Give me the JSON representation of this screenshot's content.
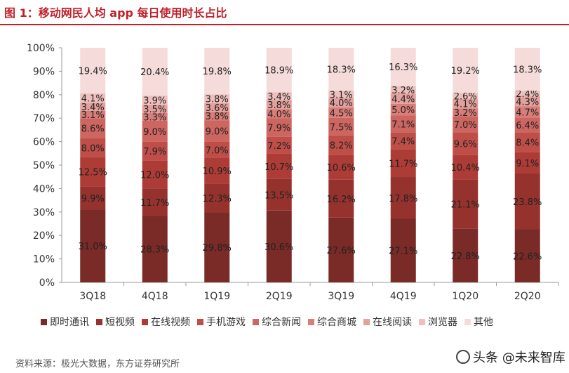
{
  "title": "图 1：移动网民人均 app 每日使用时长占比",
  "source": "资料来源：极光大数据，东方证券研究所",
  "watermark": "头条 @未来智库",
  "colors": {
    "title": "#c0202a",
    "series": [
      "#7a2a27",
      "#95322e",
      "#ad3b36",
      "#bf4e48",
      "#cd6560",
      "#d87d78",
      "#e3a09c",
      "#eec0bd",
      "#f5dcda"
    ]
  },
  "chart_data": {
    "type": "bar",
    "stacked": true,
    "categories": [
      "3Q18",
      "4Q18",
      "1Q19",
      "2Q19",
      "3Q19",
      "4Q19",
      "1Q20",
      "2Q20"
    ],
    "y_ticks": [
      "0%",
      "10%",
      "20%",
      "30%",
      "40%",
      "50%",
      "60%",
      "70%",
      "80%",
      "90%",
      "100%"
    ],
    "ylim": [
      0,
      100
    ],
    "legend_position": "bottom",
    "series": [
      {
        "name": "即时通讯",
        "values": [
          31.0,
          28.3,
          29.8,
          30.6,
          27.6,
          27.1,
          22.8,
          22.6
        ]
      },
      {
        "name": "短视频",
        "values": [
          9.9,
          11.7,
          12.3,
          13.5,
          16.2,
          17.8,
          21.1,
          23.8
        ]
      },
      {
        "name": "在线视频",
        "values": [
          12.5,
          12.0,
          10.9,
          10.7,
          10.6,
          11.7,
          10.4,
          9.1
        ]
      },
      {
        "name": "手机游戏",
        "values": [
          8.0,
          7.9,
          7.0,
          7.2,
          8.2,
          7.4,
          9.6,
          8.4
        ]
      },
      {
        "name": "综合新闻",
        "values": [
          8.6,
          9.0,
          9.0,
          7.9,
          7.5,
          7.1,
          7.0,
          6.4
        ]
      },
      {
        "name": "综合商城",
        "values": [
          3.1,
          3.3,
          3.8,
          4.0,
          4.5,
          5.0,
          3.2,
          4.7
        ]
      },
      {
        "name": "在线阅读",
        "values": [
          3.4,
          3.5,
          3.6,
          3.8,
          4.0,
          4.4,
          4.1,
          4.3
        ]
      },
      {
        "name": "浏览器",
        "values": [
          4.1,
          3.9,
          3.8,
          3.4,
          3.1,
          3.2,
          2.6,
          2.4
        ]
      },
      {
        "name": "其他",
        "values": [
          19.4,
          20.4,
          19.8,
          18.9,
          18.3,
          16.3,
          19.2,
          18.3
        ]
      }
    ],
    "labels": [
      [
        "31.0%",
        "9.9%",
        "12.5%",
        "8.0%",
        "8.6%",
        "3.1%",
        "3.4%",
        "4.1%",
        "19.4%"
      ],
      [
        "28.3%",
        "11.7%",
        "12.0%",
        "7.9%",
        "9.0%",
        "3.3%",
        "3.5%",
        "3.9%",
        "20.4%"
      ],
      [
        "29.8%",
        "12.3%",
        "10.9%",
        "7.0%",
        "9.0%",
        "3.8%",
        "3.6%",
        "3.8%",
        "19.8%"
      ],
      [
        "30.6%",
        "13.5%",
        "10.7%",
        "7.2%",
        "7.9%",
        "4.0%",
        "3.8%",
        "3.4%",
        "18.9%"
      ],
      [
        "27.6%",
        "16.2%",
        "10.6%",
        "8.2%",
        "7.5%",
        "4.5%",
        "4.0%",
        "3.1%",
        "18.3%"
      ],
      [
        "27.1%",
        "17.8%",
        "11.7%",
        "7.4%",
        "7.1%",
        "5.0%",
        "4.4%",
        "3.2%",
        "16.3%"
      ],
      [
        "22.8%",
        "21.1%",
        "10.4%",
        "9.6%",
        "7.0%",
        "3.2%",
        "4.1%",
        "2.6%",
        "19.2%"
      ],
      [
        "22.6%",
        "23.8%",
        "9.1%",
        "8.4%",
        "6.4%",
        "4.7%",
        "4.3%",
        "2.4%",
        "18.3%"
      ]
    ]
  }
}
